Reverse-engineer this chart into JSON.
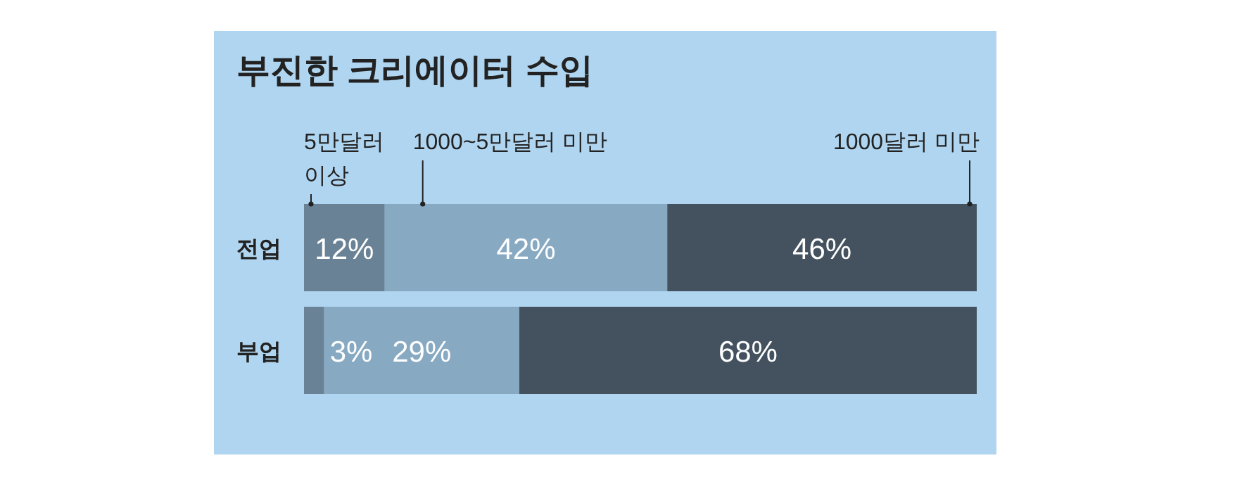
{
  "chart_data": {
    "type": "bar",
    "orientation": "horizontal",
    "stacked": true,
    "title": "부진한 크리에이터 수입",
    "categories": [
      "전업",
      "부업"
    ],
    "series": [
      {
        "name": "5만달러 이상",
        "color": "#6a8296",
        "values": [
          12,
          3
        ],
        "value_labels": [
          "12%",
          "3%"
        ]
      },
      {
        "name": "1000~5만달러 미만",
        "color": "#87a9c2",
        "values": [
          42,
          29
        ],
        "value_labels": [
          "42%",
          "29%"
        ]
      },
      {
        "name": "1000달러 미만",
        "color": "#43525e",
        "values": [
          46,
          68
        ],
        "value_labels": [
          "46%",
          "68%"
        ]
      }
    ],
    "xlim": [
      0,
      100
    ]
  }
}
